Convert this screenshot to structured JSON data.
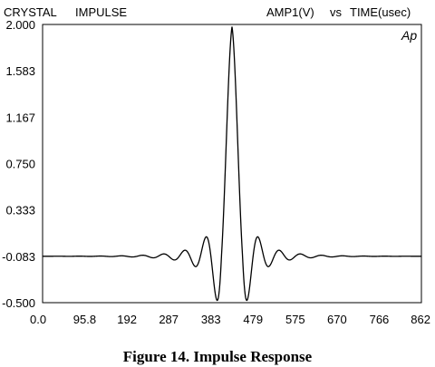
{
  "chart_data": {
    "type": "line",
    "header_left": [
      "CRYSTAL",
      "IMPULSE"
    ],
    "header_right": [
      "AMP1(V)",
      "vs",
      "TIME(usec)"
    ],
    "trace_label": "Ap",
    "caption": "Figure 14.  Impulse Response",
    "ylim": [
      -0.5,
      2.0
    ],
    "xlim": [
      0.0,
      862
    ],
    "y_ticks": [
      "2.000",
      "1.583",
      "1.167",
      "0.750",
      "0.333",
      "-0.083",
      "-0.500"
    ],
    "y_tick_values": [
      2.0,
      1.583,
      1.167,
      0.75,
      0.333,
      -0.083,
      -0.5
    ],
    "x_ticks": [
      "0.0",
      "95.8",
      "192",
      "287",
      "383",
      "479",
      "575",
      "670",
      "766",
      "862"
    ],
    "x_tick_values": [
      0.0,
      95.8,
      192,
      287,
      383,
      479,
      575,
      670,
      766,
      862
    ],
    "grid": false,
    "series": [
      {
        "peak_time": 431,
        "peak_amplitude": 1.98,
        "baseline": -0.083,
        "first_lobe_half_width": 24,
        "secondary_lobe_amplitude": -0.48,
        "decay_constant": 84,
        "color": "#000000"
      }
    ]
  }
}
